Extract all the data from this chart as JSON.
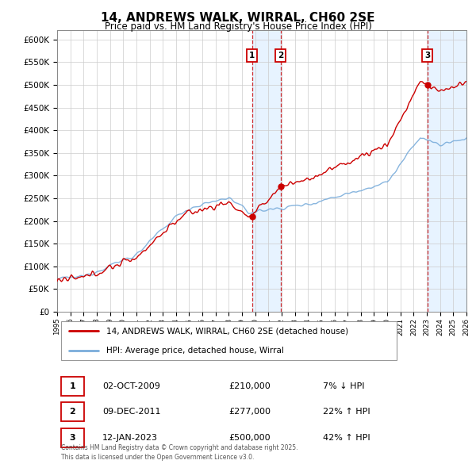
{
  "title": "14, ANDREWS WALK, WIRRAL, CH60 2SE",
  "subtitle": "Price paid vs. HM Land Registry's House Price Index (HPI)",
  "property_label": "14, ANDREWS WALK, WIRRAL, CH60 2SE (detached house)",
  "hpi_label": "HPI: Average price, detached house, Wirral",
  "footer": "Contains HM Land Registry data © Crown copyright and database right 2025.\nThis data is licensed under the Open Government Licence v3.0.",
  "transactions": [
    {
      "num": 1,
      "date": "02-OCT-2009",
      "price": 210000,
      "hpi_diff": "7% ↓ HPI",
      "year": 2009.75
    },
    {
      "num": 2,
      "date": "09-DEC-2011",
      "price": 277000,
      "hpi_diff": "22% ↑ HPI",
      "year": 2011.917
    },
    {
      "num": 3,
      "date": "12-JAN-2023",
      "price": 500000,
      "hpi_diff": "42% ↑ HPI",
      "year": 2023.042
    }
  ],
  "ylim": [
    0,
    620000
  ],
  "yticks": [
    0,
    50000,
    100000,
    150000,
    200000,
    250000,
    300000,
    350000,
    400000,
    450000,
    500000,
    550000,
    600000
  ],
  "property_color": "#cc0000",
  "hpi_color": "#7aaddb",
  "highlight_color": "#ddeeff",
  "background_color": "#ffffff",
  "grid_color": "#cccccc",
  "x_start_year": 1995,
  "x_end_year": 2026
}
